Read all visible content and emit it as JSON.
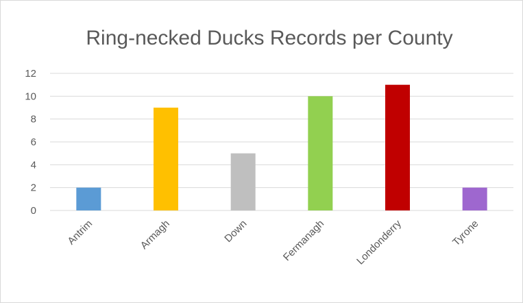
{
  "chart_data": {
    "type": "bar",
    "title": "Ring-necked Ducks Records per County",
    "xlabel": "",
    "ylabel": "",
    "categories": [
      "Antrim",
      "Armagh",
      "Down",
      "Fermanagh",
      "Londonderry",
      "Tyrone"
    ],
    "values": [
      2,
      9,
      5,
      10,
      11,
      2
    ],
    "colors": [
      "#5b9bd5",
      "#ffc000",
      "#bfbfbf",
      "#92d050",
      "#c00000",
      "#9e67cf"
    ],
    "ylim": [
      0,
      12
    ],
    "yticks": [
      "0",
      "2",
      "4",
      "6",
      "8",
      "10",
      "12"
    ],
    "grid": true,
    "legend": "none"
  }
}
